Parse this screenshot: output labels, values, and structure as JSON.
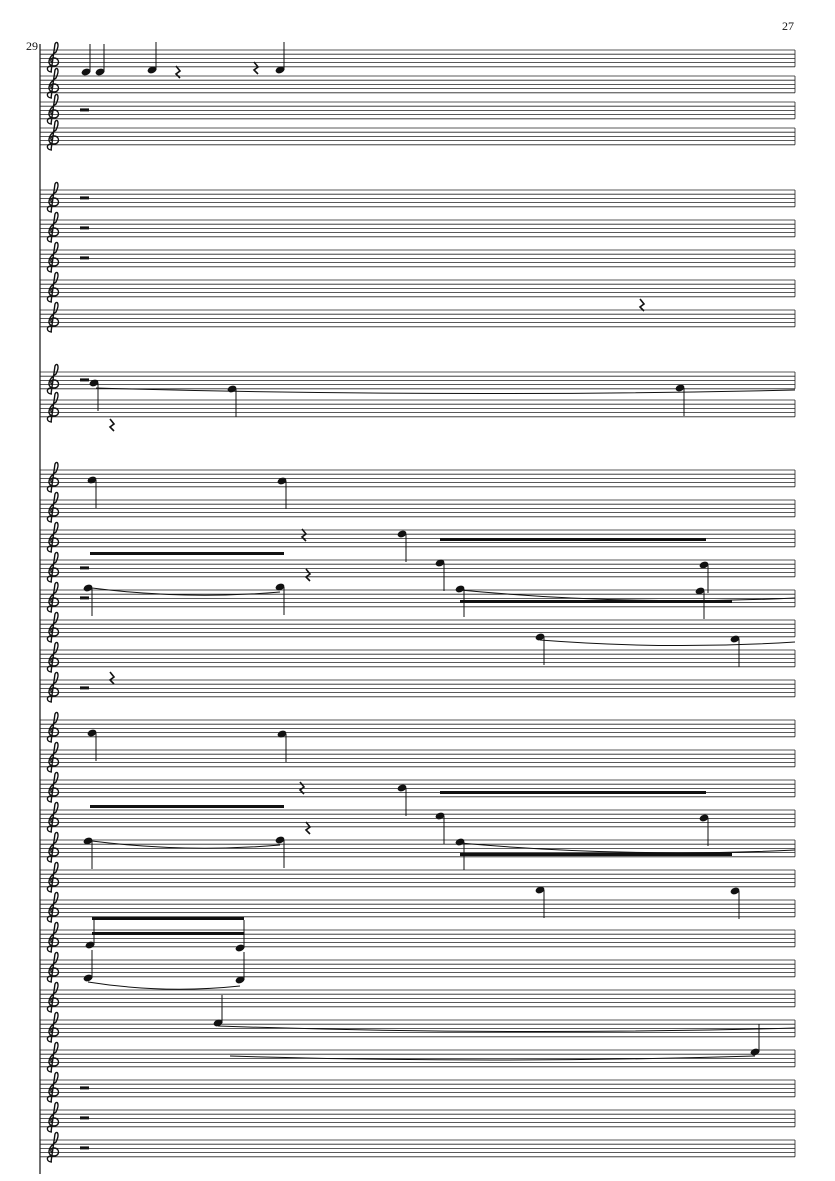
{
  "page": {
    "page_number": "27",
    "measure_number": "29"
  }
}
